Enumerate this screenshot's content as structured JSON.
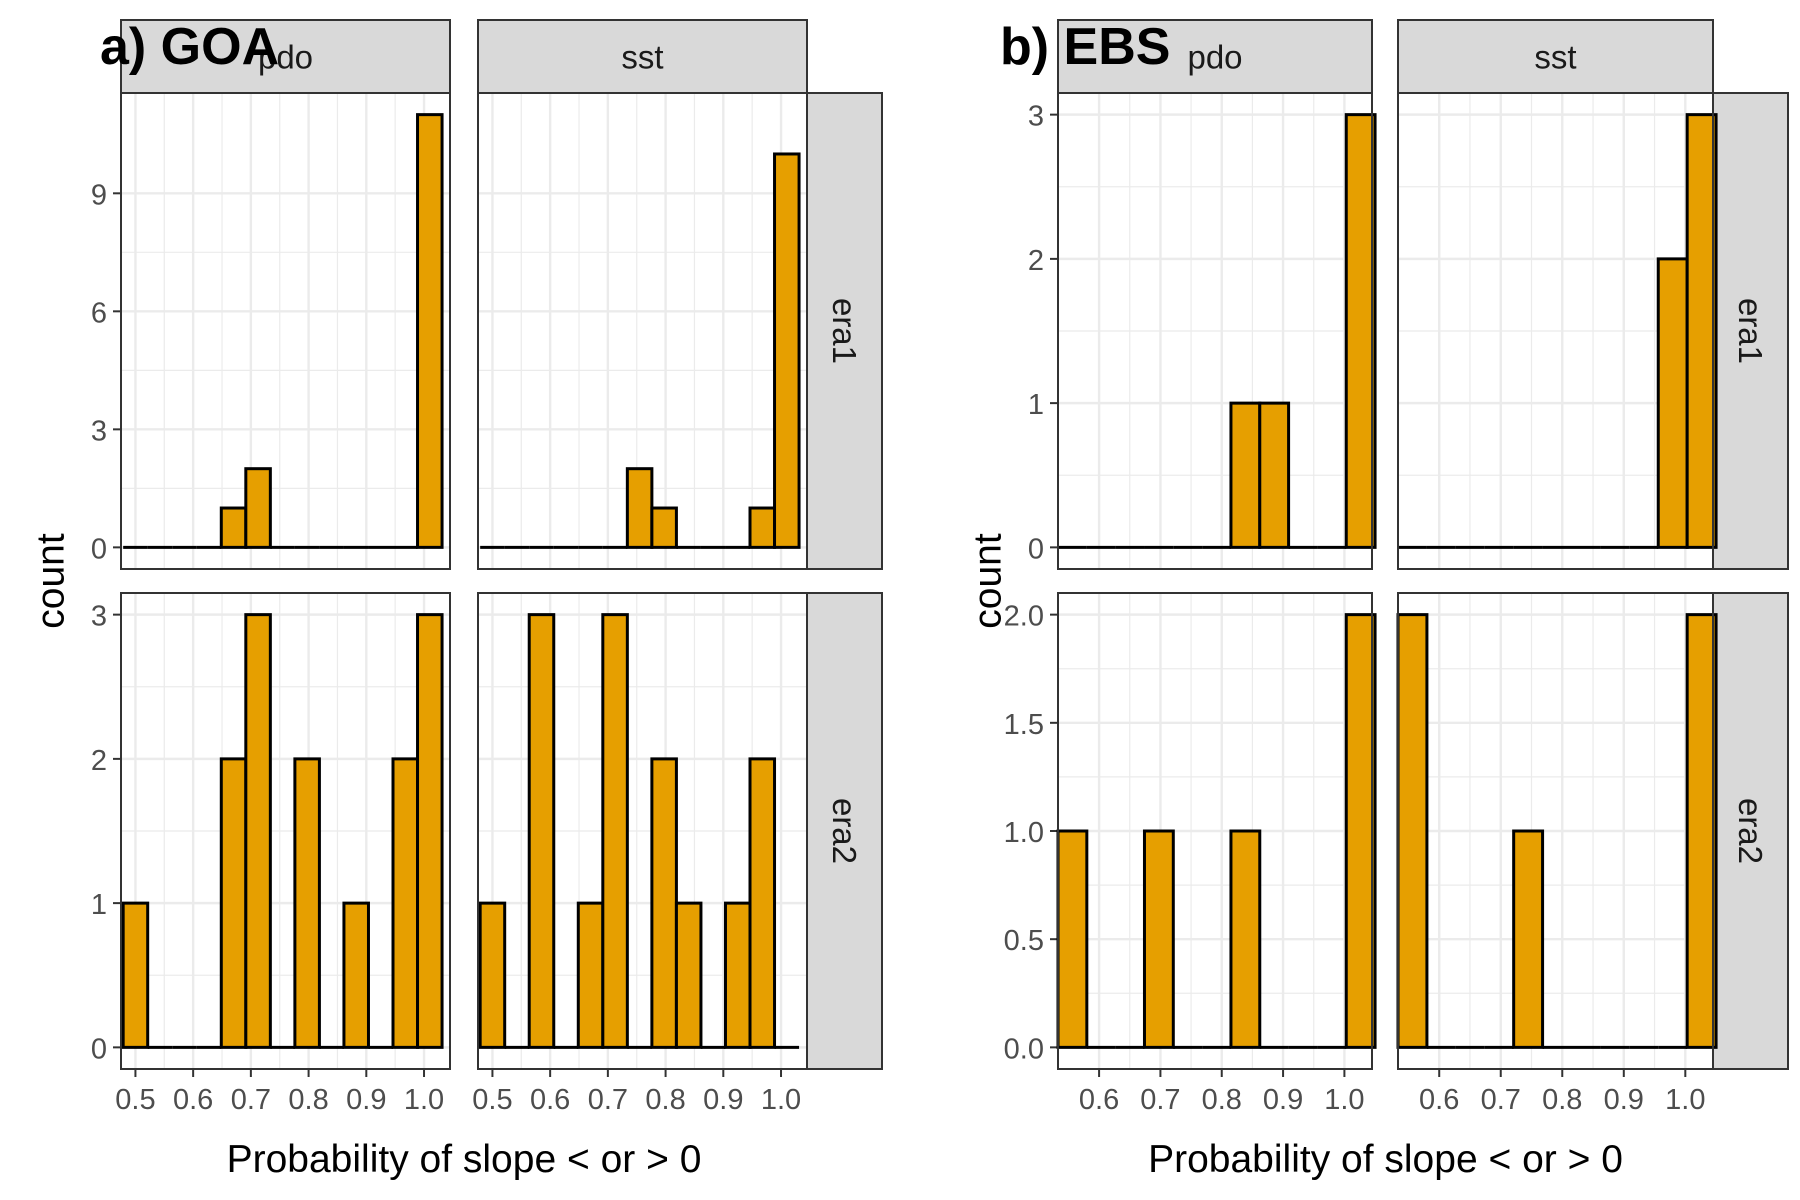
{
  "figure": {
    "panel_labels": [
      "a) GOA",
      "b) EBS"
    ],
    "colors": {
      "bar_fill": "#E69F00",
      "bar_stroke": "#000000",
      "strip_fill": "#D9D9D9",
      "panel_border": "#333333",
      "grid": "#EBEBEB",
      "tick_text": "#4D4D4D"
    }
  },
  "chart_data": [
    {
      "type": "bar",
      "subtitle_label": "a) GOA",
      "xlabel": "Probability of slope < or > 0",
      "ylabel": "count",
      "bin_width": 0.0425,
      "x_ticks": [
        "0.5",
        "0.6",
        "0.7",
        "0.8",
        "0.9",
        "1.0"
      ],
      "xlim": [
        0.475,
        1.045
      ],
      "facet_cols": [
        "pdo",
        "sst"
      ],
      "facet_rows": [
        "era1",
        "era2"
      ],
      "rows": [
        {
          "name": "era1",
          "ylim": [
            -0.55,
            11.55
          ],
          "y_ticks": [
            0,
            3,
            6,
            9
          ],
          "panels": [
            {
              "col": "pdo",
              "centers": [
                0.5,
                0.5425,
                0.585,
                0.6275,
                0.67,
                0.7125,
                0.755,
                0.7975,
                0.84,
                0.8825,
                0.925,
                0.9675,
                1.01
              ],
              "counts": [
                0,
                0,
                0,
                0,
                1,
                2,
                0,
                0,
                0,
                0,
                0,
                0,
                11
              ]
            },
            {
              "col": "sst",
              "centers": [
                0.5,
                0.5425,
                0.585,
                0.6275,
                0.67,
                0.7125,
                0.755,
                0.7975,
                0.84,
                0.8825,
                0.925,
                0.9675,
                1.01
              ],
              "counts": [
                0,
                0,
                0,
                0,
                0,
                0,
                2,
                1,
                0,
                0,
                0,
                1,
                10
              ]
            }
          ]
        },
        {
          "name": "era2",
          "ylim": [
            -0.15,
            3.15
          ],
          "y_ticks": [
            0,
            1,
            2,
            3
          ],
          "panels": [
            {
              "col": "pdo",
              "centers": [
                0.5,
                0.5425,
                0.585,
                0.6275,
                0.67,
                0.7125,
                0.755,
                0.7975,
                0.84,
                0.8825,
                0.925,
                0.9675,
                1.01
              ],
              "counts": [
                1,
                0,
                0,
                0,
                2,
                3,
                0,
                2,
                0,
                1,
                0,
                2,
                3
              ]
            },
            {
              "col": "sst",
              "centers": [
                0.5,
                0.5425,
                0.585,
                0.6275,
                0.67,
                0.7125,
                0.755,
                0.7975,
                0.84,
                0.8825,
                0.925,
                0.9675,
                1.01
              ],
              "counts": [
                1,
                0,
                3,
                0,
                1,
                3,
                0,
                2,
                1,
                0,
                1,
                2,
                0
              ]
            }
          ]
        }
      ]
    },
    {
      "type": "bar",
      "subtitle_label": "b) EBS",
      "xlabel": "Probability of slope < or > 0",
      "ylabel": "count",
      "bin_width": 0.047,
      "x_ticks": [
        "0.6",
        "0.7",
        "0.8",
        "0.9",
        "1.0"
      ],
      "xlim": [
        0.533,
        1.045
      ],
      "facet_cols": [
        "pdo",
        "sst"
      ],
      "facet_rows": [
        "era1",
        "era2"
      ],
      "rows": [
        {
          "name": "era1",
          "ylim": [
            -0.15,
            3.15
          ],
          "y_ticks": [
            0,
            1,
            2,
            3
          ],
          "panels": [
            {
              "col": "pdo",
              "centers": [
                0.5565,
                0.6035,
                0.6505,
                0.6975,
                0.7445,
                0.7915,
                0.8385,
                0.8855,
                0.9325,
                0.9795,
                1.0265
              ],
              "counts": [
                0,
                0,
                0,
                0,
                0,
                0,
                1,
                1,
                0,
                0,
                3
              ]
            },
            {
              "col": "sst",
              "centers": [
                0.5565,
                0.6035,
                0.6505,
                0.6975,
                0.7445,
                0.7915,
                0.8385,
                0.8855,
                0.9325,
                0.9795,
                1.0265
              ],
              "counts": [
                0,
                0,
                0,
                0,
                0,
                0,
                0,
                0,
                0,
                2,
                3
              ]
            }
          ]
        },
        {
          "name": "era2",
          "ylim": [
            -0.1,
            2.1
          ],
          "y_ticks": [
            0.0,
            0.5,
            1.0,
            1.5,
            2.0
          ],
          "panels": [
            {
              "col": "pdo",
              "centers": [
                0.5565,
                0.6035,
                0.6505,
                0.6975,
                0.7445,
                0.7915,
                0.8385,
                0.8855,
                0.9325,
                0.9795,
                1.0265
              ],
              "counts": [
                1,
                0,
                0,
                1,
                0,
                0,
                1,
                0,
                0,
                0,
                2
              ]
            },
            {
              "col": "sst",
              "centers": [
                0.5565,
                0.6035,
                0.6505,
                0.6975,
                0.7445,
                0.7915,
                0.8385,
                0.8855,
                0.9325,
                0.9795,
                1.0265
              ],
              "counts": [
                2,
                0,
                0,
                0,
                1,
                0,
                0,
                0,
                0,
                0,
                2
              ]
            }
          ]
        }
      ]
    }
  ]
}
